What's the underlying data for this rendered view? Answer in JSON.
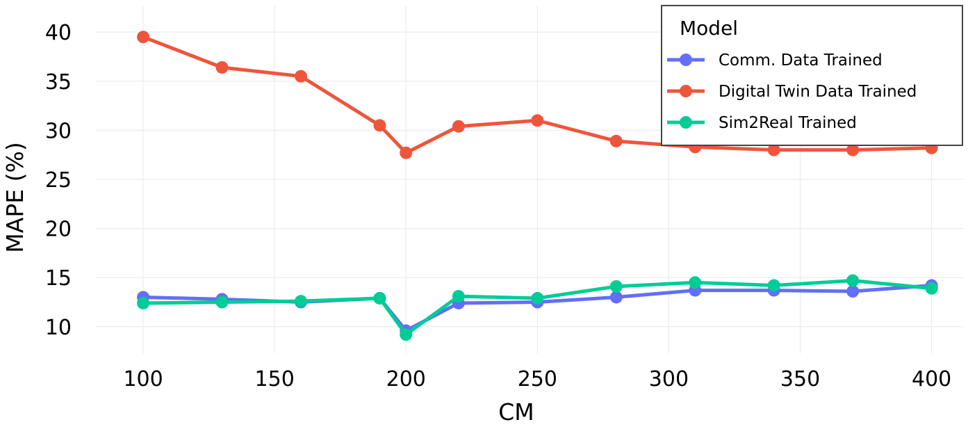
{
  "chart_data": {
    "type": "line",
    "xlabel": "CM",
    "ylabel": "MAPE (%)",
    "x": [
      100,
      130,
      160,
      190,
      200,
      220,
      250,
      280,
      310,
      340,
      370,
      400
    ],
    "xlim": [
      82,
      412
    ],
    "ylim": [
      7.3,
      42.7
    ],
    "x_ticks": [
      100,
      150,
      200,
      250,
      300,
      350,
      400
    ],
    "y_ticks": [
      10,
      15,
      20,
      25,
      30,
      35,
      40
    ],
    "grid": true,
    "legend": {
      "title": "Model",
      "placement": "top-right"
    },
    "series": [
      {
        "name": "Comm. Data Trained",
        "color": "#636efa",
        "values": [
          13.0,
          12.8,
          12.5,
          12.9,
          9.6,
          12.4,
          12.5,
          13.0,
          13.7,
          13.7,
          13.6,
          14.2
        ]
      },
      {
        "name": "Digital Twin Data Trained",
        "color": "#ef553b",
        "values": [
          39.5,
          36.4,
          35.5,
          30.5,
          27.7,
          30.4,
          31.0,
          28.9,
          28.3,
          28.0,
          28.0,
          28.2
        ]
      },
      {
        "name": "Sim2Real Trained",
        "color": "#00cc96",
        "values": [
          12.4,
          12.5,
          12.6,
          12.9,
          9.2,
          13.1,
          12.9,
          14.1,
          14.5,
          14.2,
          14.7,
          13.9
        ]
      }
    ]
  }
}
